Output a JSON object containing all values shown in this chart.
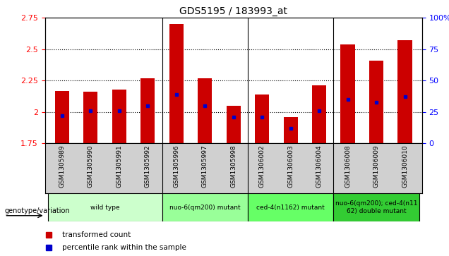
{
  "title": "GDS5195 / 183993_at",
  "samples": [
    "GSM1305989",
    "GSM1305990",
    "GSM1305991",
    "GSM1305992",
    "GSM1305996",
    "GSM1305997",
    "GSM1305998",
    "GSM1306002",
    "GSM1306003",
    "GSM1306004",
    "GSM1306008",
    "GSM1306009",
    "GSM1306010"
  ],
  "bar_tops": [
    2.17,
    2.16,
    2.18,
    2.27,
    2.7,
    2.27,
    2.05,
    2.14,
    1.96,
    2.21,
    2.54,
    2.41,
    2.57
  ],
  "bar_bottoms": [
    1.75,
    1.75,
    1.75,
    1.75,
    1.75,
    1.75,
    1.75,
    1.75,
    1.75,
    1.75,
    1.75,
    1.75,
    1.75
  ],
  "blue_marker_y": [
    1.97,
    2.01,
    2.01,
    2.05,
    2.14,
    2.05,
    1.96,
    1.96,
    1.87,
    2.01,
    2.1,
    2.08,
    2.12
  ],
  "bar_color": "#cc0000",
  "blue_color": "#0000cc",
  "ylim_left": [
    1.75,
    2.75
  ],
  "ylim_right": [
    0,
    100
  ],
  "yticks_left": [
    1.75,
    2.0,
    2.25,
    2.5,
    2.75
  ],
  "yticks_right": [
    0,
    25,
    50,
    75,
    100
  ],
  "groups": [
    {
      "label": "wild type",
      "indices": [
        0,
        1,
        2,
        3
      ],
      "color": "#ccffcc"
    },
    {
      "label": "nuo-6(qm200) mutant",
      "indices": [
        4,
        5,
        6
      ],
      "color": "#99ff99"
    },
    {
      "label": "ced-4(n1162) mutant",
      "indices": [
        7,
        8,
        9
      ],
      "color": "#66ff66"
    },
    {
      "label": "nuo-6(qm200); ced-4(n11\n62) double mutant",
      "indices": [
        10,
        11,
        12
      ],
      "color": "#33cc33"
    }
  ],
  "group_boundaries": [
    4,
    7,
    10
  ],
  "legend_items": [
    {
      "label": "transformed count",
      "color": "#cc0000"
    },
    {
      "label": "percentile rank within the sample",
      "color": "#0000cc"
    }
  ],
  "group_label": "genotype/variation",
  "bar_width": 0.5,
  "bg_color": "#ffffff"
}
